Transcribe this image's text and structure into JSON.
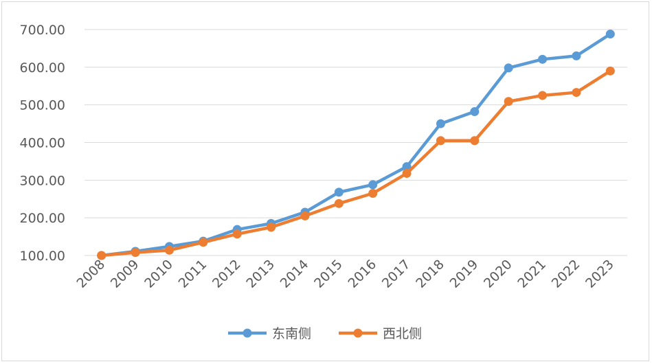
{
  "chart_data": {
    "type": "line",
    "title": "",
    "xlabel": "",
    "ylabel": "",
    "x": [
      "2008",
      "2009",
      "2010",
      "2011",
      "2012",
      "2013",
      "2014",
      "2015",
      "2016",
      "2017",
      "2018",
      "2019",
      "2020",
      "2021",
      "2022",
      "2023"
    ],
    "yticks": [
      "100.00",
      "200.00",
      "300.00",
      "400.00",
      "500.00",
      "600.00",
      "700.00"
    ],
    "ylim": [
      100,
      700
    ],
    "grid": true,
    "legend_position": "bottom",
    "series": [
      {
        "name": "东南侧",
        "color": "#5b9bd5",
        "values": [
          100,
          111,
          124,
          138,
          169,
          185,
          215,
          268,
          288,
          336,
          450,
          482,
          598,
          621,
          630,
          688
        ]
      },
      {
        "name": "西北侧",
        "color": "#ed7d31",
        "values": [
          100,
          108,
          114,
          135,
          157,
          175,
          205,
          238,
          265,
          318,
          405,
          405,
          509,
          525,
          533,
          590
        ]
      }
    ]
  }
}
